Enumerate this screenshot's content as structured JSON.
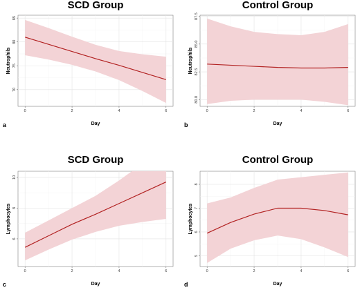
{
  "chart_data": [
    {
      "type": "line",
      "panel": "a",
      "title": "SCD Group",
      "xlabel": "Day",
      "ylabel": "Neutrophils",
      "xlim": [
        -0.3,
        6.3
      ],
      "ylim": [
        66.5,
        85.6
      ],
      "xticks": [
        0,
        2,
        4,
        6
      ],
      "yticks": [
        70,
        75,
        80,
        85
      ],
      "ytick_labels": [
        "70",
        "75",
        "80",
        "85"
      ],
      "grid": true,
      "band_color": "#f3d3d6",
      "line_color": "#b22222",
      "series": [
        {
          "x": [
            0,
            1,
            2,
            3,
            4,
            5,
            6
          ],
          "y": [
            81.0,
            79.5,
            78.0,
            76.5,
            75.1,
            73.6,
            72.1
          ],
          "lower": [
            77.2,
            76.3,
            75.2,
            73.8,
            72.0,
            69.7,
            67.2
          ],
          "upper": [
            84.6,
            82.9,
            81.1,
            79.4,
            78.1,
            77.4,
            76.9
          ]
        }
      ]
    },
    {
      "type": "line",
      "panel": "b",
      "title": "Control Group",
      "xlabel": "Day",
      "ylabel": "Neutrophils",
      "xlim": [
        -0.3,
        6.3
      ],
      "ylim": [
        79.4,
        87.6
      ],
      "xticks": [
        0,
        2,
        4,
        6
      ],
      "yticks": [
        80.0,
        82.5,
        85.0,
        87.5
      ],
      "ytick_labels": [
        "80.0",
        "82.5",
        "85.0",
        "87.5"
      ],
      "grid": true,
      "band_color": "#f3d3d6",
      "line_color": "#b22222",
      "series": [
        {
          "x": [
            0,
            1,
            2,
            3,
            4,
            5,
            6
          ],
          "y": [
            83.2,
            83.1,
            83.0,
            82.9,
            82.85,
            82.85,
            82.9
          ],
          "lower": [
            79.6,
            79.9,
            80.0,
            80.0,
            80.0,
            79.8,
            79.5
          ],
          "upper": [
            87.3,
            86.6,
            86.1,
            85.9,
            85.8,
            86.1,
            86.8
          ]
        }
      ]
    },
    {
      "type": "line",
      "panel": "c",
      "title": "SCD Group",
      "xlabel": "Day",
      "ylabel": "Lymphocytes",
      "xlim": [
        -0.3,
        6.3
      ],
      "ylim": [
        4.2,
        10.4
      ],
      "xticks": [
        0,
        2,
        4,
        6
      ],
      "yticks": [
        6,
        8,
        10
      ],
      "ytick_labels": [
        "6",
        "8",
        "10"
      ],
      "grid": true,
      "band_color": "#f3d3d6",
      "line_color": "#b22222",
      "series": [
        {
          "x": [
            0,
            1,
            2,
            3,
            4,
            5,
            6
          ],
          "y": [
            5.45,
            6.2,
            6.95,
            7.6,
            8.3,
            9.0,
            9.7
          ],
          "lower": [
            4.6,
            5.3,
            5.95,
            6.45,
            6.85,
            7.1,
            7.3
          ],
          "upper": [
            6.4,
            7.2,
            8.0,
            8.8,
            9.8,
            10.9,
            12.1
          ]
        }
      ]
    },
    {
      "type": "line",
      "panel": "d",
      "title": "Control Group",
      "xlabel": "Day",
      "ylabel": "Lymphocytes",
      "xlim": [
        -0.3,
        6.3
      ],
      "ylim": [
        4.55,
        8.55
      ],
      "xticks": [
        0,
        2,
        4,
        6
      ],
      "yticks": [
        5,
        6,
        7,
        8
      ],
      "ytick_labels": [
        "5",
        "6",
        "7",
        "8"
      ],
      "grid": true,
      "band_color": "#f3d3d6",
      "line_color": "#b22222",
      "series": [
        {
          "x": [
            0,
            1,
            2,
            3,
            4,
            5,
            6
          ],
          "y": [
            5.95,
            6.4,
            6.75,
            7.0,
            7.0,
            6.9,
            6.72
          ],
          "lower": [
            4.7,
            5.3,
            5.65,
            5.85,
            5.7,
            5.35,
            4.95
          ],
          "upper": [
            7.2,
            7.45,
            7.85,
            8.2,
            8.3,
            8.4,
            8.5
          ]
        }
      ]
    }
  ]
}
